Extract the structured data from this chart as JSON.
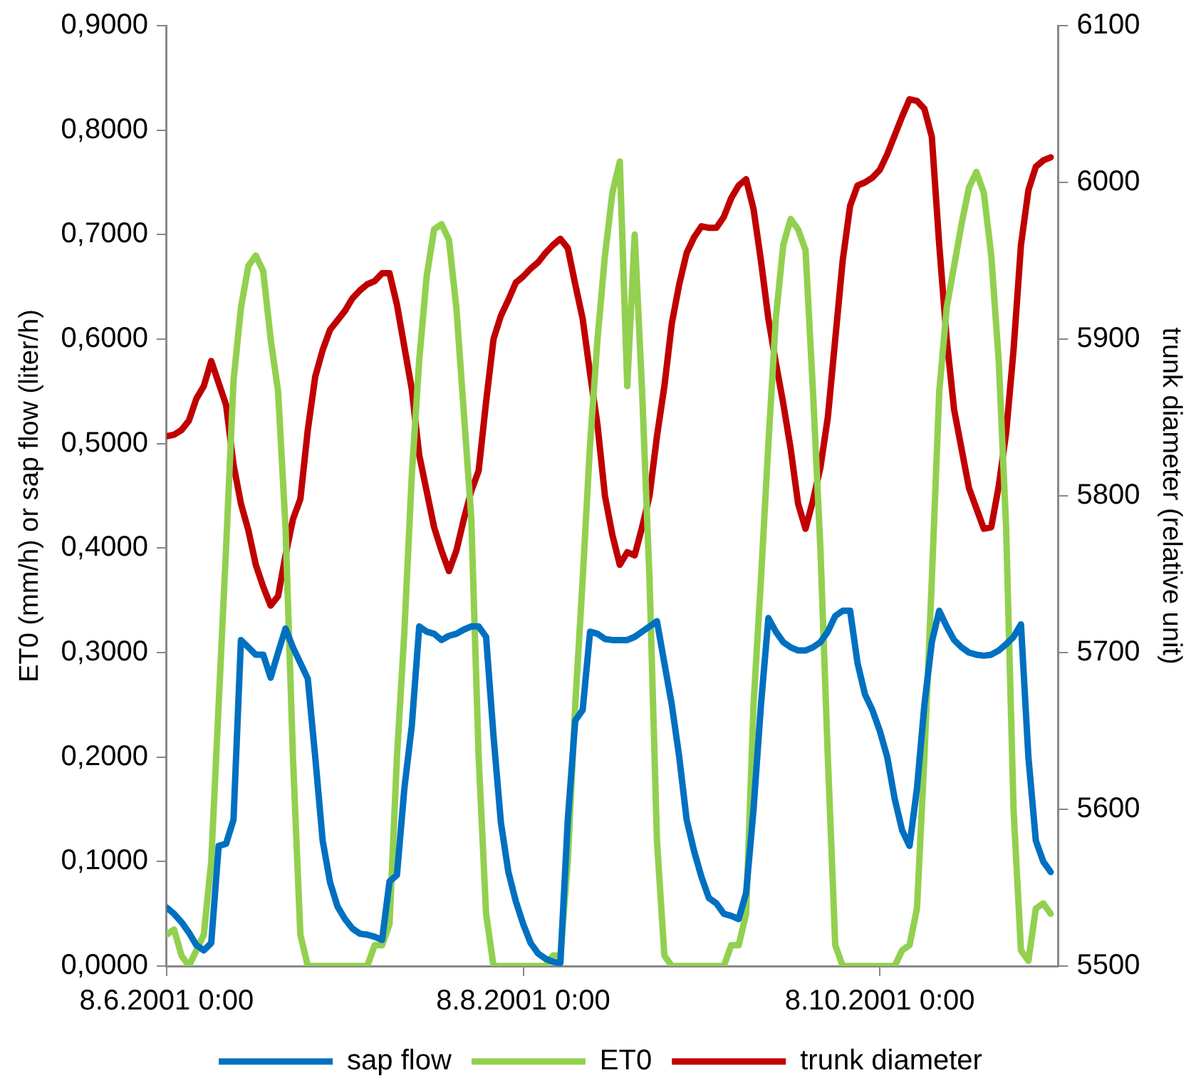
{
  "chart_data": {
    "type": "line",
    "ylabel": "ET0 (mm/h) or sap flow (liter/h)",
    "y2label": "trunk diameter (relative unit)",
    "x": [
      "2001-08-06T00:00",
      "2001-08-06T01:00",
      "2001-08-06T02:00",
      "2001-08-06T03:00",
      "2001-08-06T04:00",
      "2001-08-06T05:00",
      "2001-08-06T06:00",
      "2001-08-06T07:00",
      "2001-08-06T08:00",
      "2001-08-06T09:00",
      "2001-08-06T10:00",
      "2001-08-06T11:00",
      "2001-08-06T12:00",
      "2001-08-06T13:00",
      "2001-08-06T14:00",
      "2001-08-06T15:00",
      "2001-08-06T16:00",
      "2001-08-06T17:00",
      "2001-08-06T18:00",
      "2001-08-06T19:00",
      "2001-08-06T20:00",
      "2001-08-06T21:00",
      "2001-08-06T22:00",
      "2001-08-06T23:00",
      "2001-08-07T00:00",
      "2001-08-07T01:00",
      "2001-08-07T02:00",
      "2001-08-07T03:00",
      "2001-08-07T04:00",
      "2001-08-07T05:00",
      "2001-08-07T06:00",
      "2001-08-07T07:00",
      "2001-08-07T08:00",
      "2001-08-07T09:00",
      "2001-08-07T10:00",
      "2001-08-07T11:00",
      "2001-08-07T12:00",
      "2001-08-07T13:00",
      "2001-08-07T14:00",
      "2001-08-07T15:00",
      "2001-08-07T16:00",
      "2001-08-07T17:00",
      "2001-08-07T18:00",
      "2001-08-07T19:00",
      "2001-08-07T20:00",
      "2001-08-07T21:00",
      "2001-08-07T22:00",
      "2001-08-07T23:00",
      "2001-08-08T00:00",
      "2001-08-08T01:00",
      "2001-08-08T02:00",
      "2001-08-08T03:00",
      "2001-08-08T04:00",
      "2001-08-08T05:00",
      "2001-08-08T06:00",
      "2001-08-08T07:00",
      "2001-08-08T08:00",
      "2001-08-08T09:00",
      "2001-08-08T10:00",
      "2001-08-08T11:00",
      "2001-08-08T12:00",
      "2001-08-08T13:00",
      "2001-08-08T14:00",
      "2001-08-08T15:00",
      "2001-08-08T16:00",
      "2001-08-08T17:00",
      "2001-08-08T18:00",
      "2001-08-08T19:00",
      "2001-08-08T20:00",
      "2001-08-08T21:00",
      "2001-08-08T22:00",
      "2001-08-08T23:00",
      "2001-08-09T00:00",
      "2001-08-09T01:00",
      "2001-08-09T02:00",
      "2001-08-09T03:00",
      "2001-08-09T04:00",
      "2001-08-09T05:00",
      "2001-08-09T06:00",
      "2001-08-09T07:00",
      "2001-08-09T08:00",
      "2001-08-09T09:00",
      "2001-08-09T10:00",
      "2001-08-09T11:00",
      "2001-08-09T12:00",
      "2001-08-09T13:00",
      "2001-08-09T14:00",
      "2001-08-09T15:00",
      "2001-08-09T16:00",
      "2001-08-09T17:00",
      "2001-08-09T18:00",
      "2001-08-09T19:00",
      "2001-08-09T20:00",
      "2001-08-09T21:00",
      "2001-08-09T22:00",
      "2001-08-09T23:00",
      "2001-08-10T00:00",
      "2001-08-10T01:00",
      "2001-08-10T02:00",
      "2001-08-10T03:00",
      "2001-08-10T04:00",
      "2001-08-10T05:00",
      "2001-08-10T06:00",
      "2001-08-10T07:00",
      "2001-08-10T08:00",
      "2001-08-10T09:00",
      "2001-08-10T10:00",
      "2001-08-10T11:00",
      "2001-08-10T12:00",
      "2001-08-10T13:00",
      "2001-08-10T14:00",
      "2001-08-10T15:00",
      "2001-08-10T16:00",
      "2001-08-10T17:00",
      "2001-08-10T18:00",
      "2001-08-10T19:00",
      "2001-08-10T20:00",
      "2001-08-10T21:00",
      "2001-08-10T22:00",
      "2001-08-10T23:00"
    ],
    "xlim": [
      "2001-08-06T00:00",
      "2001-08-11T00:00"
    ],
    "xticks": [
      {
        "value": "2001-08-06T00:00",
        "label": "8.6.2001 0:00"
      },
      {
        "value": "2001-08-08T00:00",
        "label": "8.8.2001 0:00"
      },
      {
        "value": "2001-08-10T00:00",
        "label": "8.10.2001 0:00"
      }
    ],
    "ylim": [
      0,
      0.9
    ],
    "yticks": [
      {
        "value": 0,
        "label": "0,0000"
      },
      {
        "value": 0.1,
        "label": "0,1000"
      },
      {
        "value": 0.2,
        "label": "0,2000"
      },
      {
        "value": 0.3,
        "label": "0,3000"
      },
      {
        "value": 0.4,
        "label": "0,4000"
      },
      {
        "value": 0.5,
        "label": "0,5000"
      },
      {
        "value": 0.6,
        "label": "0,6000"
      },
      {
        "value": 0.7,
        "label": "0,7000"
      },
      {
        "value": 0.8,
        "label": "0,8000"
      },
      {
        "value": 0.9,
        "label": "0,9000"
      }
    ],
    "y2lim": [
      5500,
      6100
    ],
    "y2ticks": [
      5500,
      5600,
      5700,
      5800,
      5900,
      6000,
      6100
    ],
    "grid": false,
    "legend": "bottom",
    "marker": "none",
    "line_style": "solid",
    "series": [
      {
        "name": "sap flow",
        "color": "#0070c0",
        "values": [
          0.056,
          0.05,
          0.042,
          0.032,
          0.02,
          0.015,
          0.022,
          0.115,
          0.117,
          0.14,
          0.312,
          0.305,
          0.298,
          0.298,
          0.276,
          0.3,
          0.323,
          0.305,
          0.29,
          0.275,
          0.2,
          0.12,
          0.08,
          0.057,
          0.045,
          0.036,
          0.031,
          0.03,
          0.028,
          0.025,
          0.081,
          0.087,
          0.17,
          0.23,
          0.325,
          0.32,
          0.318,
          0.312,
          0.316,
          0.318,
          0.322,
          0.325,
          0.325,
          0.315,
          0.22,
          0.137,
          0.09,
          0.062,
          0.04,
          0.022,
          0.012,
          0.007,
          0.004,
          0.003,
          0.14,
          0.235,
          0.245,
          0.32,
          0.318,
          0.313,
          0.312,
          0.312,
          0.312,
          0.315,
          0.32,
          0.325,
          0.33,
          0.29,
          0.25,
          0.2,
          0.14,
          0.11,
          0.085,
          0.065,
          0.06,
          0.05,
          0.048,
          0.045,
          0.07,
          0.15,
          0.25,
          0.333,
          0.32,
          0.31,
          0.305,
          0.302,
          0.302,
          0.305,
          0.31,
          0.32,
          0.335,
          0.34,
          0.34,
          0.29,
          0.26,
          0.245,
          0.225,
          0.2,
          0.16,
          0.13,
          0.115,
          0.17,
          0.25,
          0.31,
          0.34,
          0.325,
          0.312,
          0.305,
          0.3,
          0.298,
          0.297,
          0.298,
          0.302,
          0.308,
          0.315,
          0.327,
          0.2,
          0.12,
          0.1,
          0.09
        ]
      },
      {
        "name": "ET0",
        "color": "#92d050",
        "values": [
          0.03,
          0.035,
          0.01,
          0,
          0.015,
          0.03,
          0.1,
          0.25,
          0.4,
          0.56,
          0.63,
          0.67,
          0.68,
          0.665,
          0.6,
          0.55,
          0.42,
          0.2,
          0.03,
          0,
          0,
          0,
          0,
          0,
          0,
          0,
          0,
          0,
          0.02,
          0.02,
          0.04,
          0.2,
          0.32,
          0.47,
          0.58,
          0.66,
          0.705,
          0.71,
          0.695,
          0.63,
          0.53,
          0.43,
          0.2,
          0.05,
          0,
          0,
          0,
          0,
          0,
          0,
          0,
          0,
          0.01,
          0.01,
          0.1,
          0.25,
          0.37,
          0.5,
          0.6,
          0.68,
          0.74,
          0.77,
          0.555,
          0.7,
          0.55,
          0.37,
          0.12,
          0.01,
          0,
          0,
          0,
          0,
          0,
          0,
          0,
          0,
          0.02,
          0.02,
          0.05,
          0.25,
          0.37,
          0.5,
          0.62,
          0.69,
          0.715,
          0.705,
          0.685,
          0.55,
          0.4,
          0.2,
          0.02,
          0,
          0,
          0,
          0,
          0,
          0,
          0,
          0,
          0.015,
          0.02,
          0.055,
          0.2,
          0.37,
          0.55,
          0.63,
          0.67,
          0.71,
          0.745,
          0.76,
          0.74,
          0.68,
          0.58,
          0.42,
          0.15,
          0.015,
          0.005,
          0.055,
          0.06,
          0.05
        ]
      },
      {
        "name": "trunk diameter",
        "color": "#c00000",
        "axis": "y2",
        "values": [
          5838,
          5839,
          5842,
          5848,
          5862,
          5870,
          5886,
          5872,
          5858,
          5820,
          5795,
          5778,
          5756,
          5742,
          5730,
          5736,
          5762,
          5785,
          5798,
          5842,
          5876,
          5893,
          5906,
          5912,
          5918,
          5926,
          5931,
          5935,
          5937,
          5942,
          5942,
          5922,
          5895,
          5868,
          5826,
          5803,
          5780,
          5765,
          5752,
          5765,
          5785,
          5803,
          5816,
          5860,
          5900,
          5915,
          5925,
          5936,
          5940,
          5945,
          5949,
          5955,
          5960,
          5964,
          5958,
          5935,
          5913,
          5878,
          5845,
          5800,
          5775,
          5756,
          5764,
          5762,
          5780,
          5800,
          5838,
          5870,
          5910,
          5935,
          5955,
          5965,
          5972,
          5971,
          5971,
          5978,
          5990,
          5998,
          6002,
          5983,
          5950,
          5913,
          5885,
          5859,
          5830,
          5795,
          5779,
          5797,
          5818,
          5850,
          5900,
          5950,
          5985,
          5998,
          6000,
          6003,
          6008,
          6018,
          6030,
          6042,
          6053,
          6052,
          6047,
          6029,
          5960,
          5900,
          5855,
          5830,
          5805,
          5792,
          5779,
          5780,
          5806,
          5840,
          5893,
          5960,
          5995,
          6010,
          6014,
          6016
        ]
      }
    ]
  }
}
